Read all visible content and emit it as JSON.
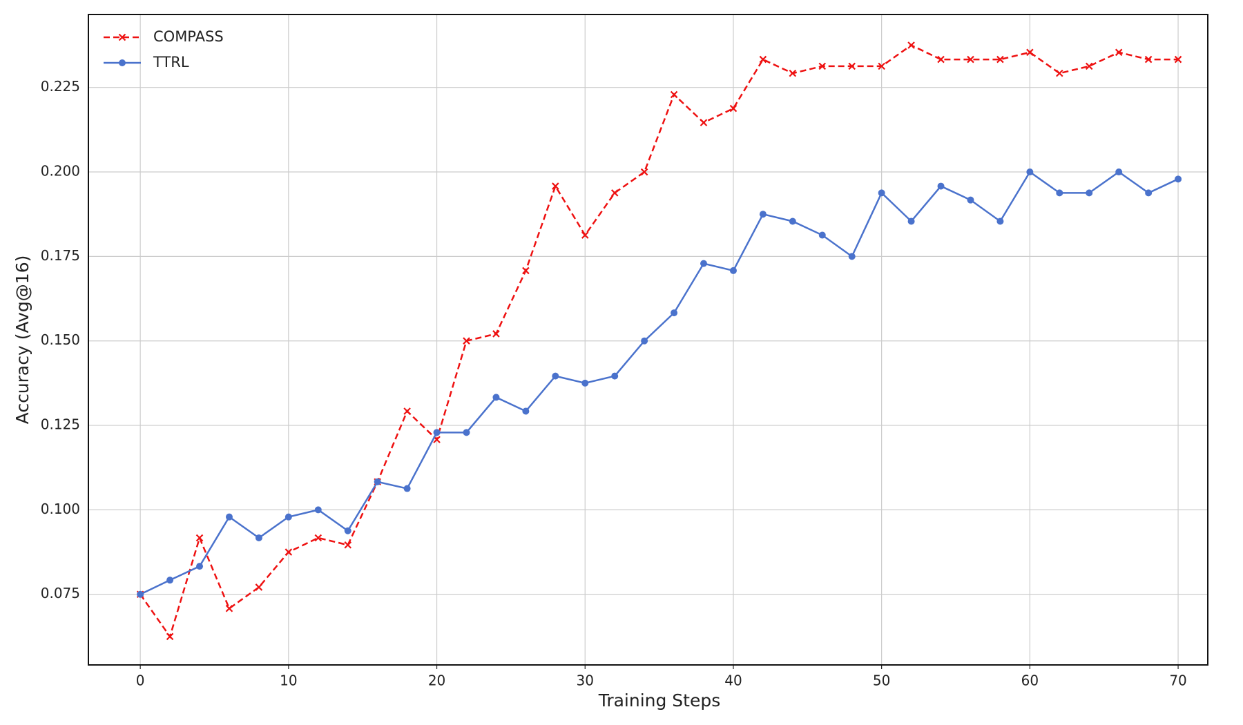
{
  "chart_data": {
    "type": "line",
    "xlabel": "Training Steps",
    "ylabel": "Accuracy (Avg@16)",
    "x": [
      0,
      2,
      4,
      6,
      8,
      10,
      12,
      14,
      16,
      18,
      20,
      22,
      24,
      26,
      28,
      30,
      32,
      34,
      36,
      38,
      40,
      42,
      44,
      46,
      48,
      50,
      52,
      54,
      56,
      58,
      60,
      62,
      64,
      66,
      68,
      70
    ],
    "series": [
      {
        "name": "COMPASS",
        "color": "#ee1111",
        "marker": "x",
        "linestyle": "dashed",
        "values": [
          0.075,
          0.0625,
          0.0917,
          0.0708,
          0.0771,
          0.0875,
          0.0917,
          0.0896,
          0.1083,
          0.1292,
          0.1208,
          0.15,
          0.1521,
          0.1708,
          0.1958,
          0.1813,
          0.1938,
          0.2,
          0.2229,
          0.2146,
          0.2188,
          0.2333,
          0.2292,
          0.2313,
          0.2313,
          0.2313,
          0.2375,
          0.2333,
          0.2333,
          0.2333,
          0.2354,
          0.2292,
          0.2313,
          0.2354,
          0.2333,
          0.2333
        ]
      },
      {
        "name": "TTRL",
        "color": "#4a72cc",
        "marker": "circle",
        "linestyle": "solid",
        "values": [
          0.075,
          0.0792,
          0.0833,
          0.0979,
          0.0917,
          0.0979,
          0.1,
          0.0938,
          0.1083,
          0.1063,
          0.1229,
          0.1229,
          0.1333,
          0.1292,
          0.1396,
          0.1375,
          0.1396,
          0.15,
          0.1583,
          0.1729,
          0.1708,
          0.1875,
          0.1854,
          0.1813,
          0.175,
          0.1938,
          0.1854,
          0.1958,
          0.1917,
          0.1854,
          0.2,
          0.1938,
          0.1938,
          0.2,
          0.1938,
          0.1979
        ]
      }
    ],
    "xlim": [
      -3.5,
      72
    ],
    "xticks": [
      0,
      10,
      20,
      30,
      40,
      50,
      60,
      70
    ],
    "ylim": [
      0.0541,
      0.2466
    ],
    "yticks": [
      0.075,
      {
        "value": 0.1,
        "label": "0.100"
      },
      0.125,
      {
        "value": 0.15,
        "label": "0.150"
      },
      0.175,
      {
        "value": 0.2,
        "label": "0.200"
      },
      0.225
    ],
    "grid": true,
    "legend": "upper left"
  }
}
